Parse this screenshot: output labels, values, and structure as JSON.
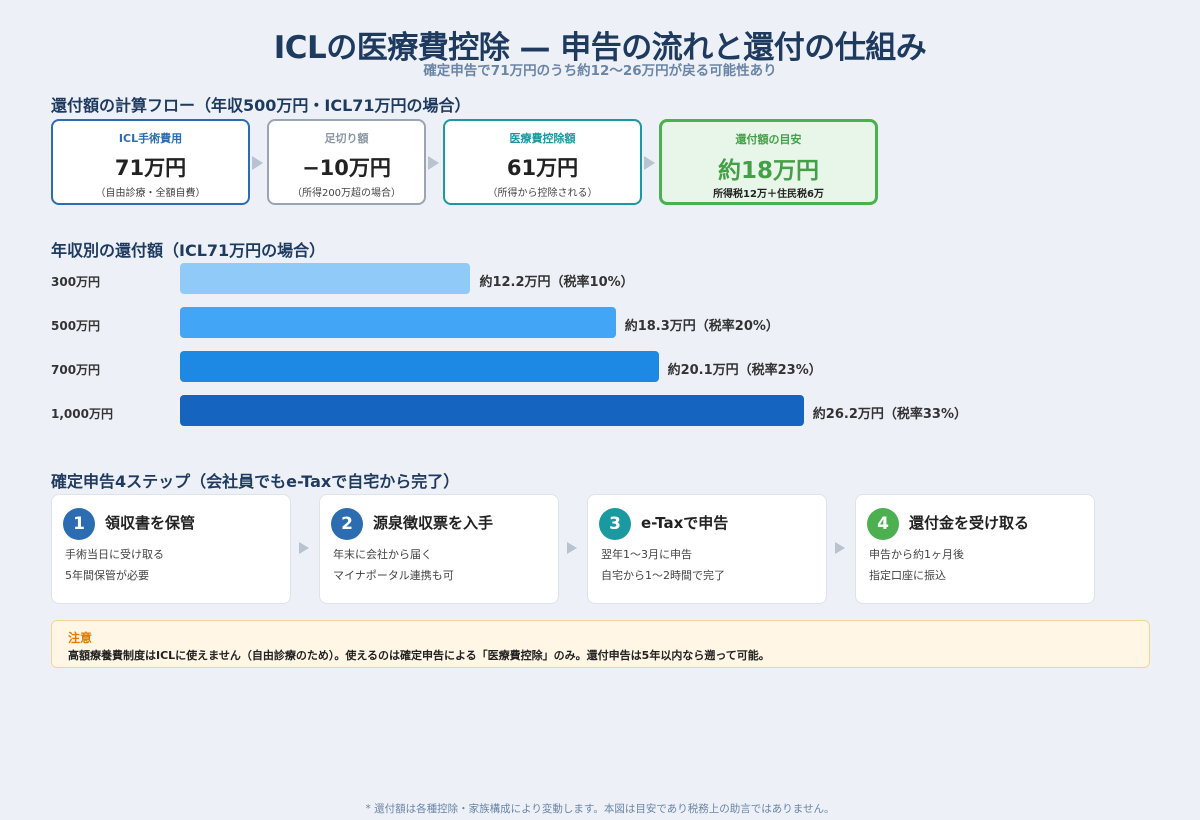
{
  "header": {
    "title": "ICLの医療費控除 — 申告の流れと還付の仕組み",
    "subtitle": "確定申告で71万円のうち約12〜26万円が戻る可能性あり"
  },
  "flow": {
    "heading": "還付額の計算フロー（年収500万円・ICL71万円の場合）",
    "boxes": [
      {
        "label": "ICL手術費用",
        "value": "71万円",
        "note": "（自由診療・全額自費）"
      },
      {
        "label": "足切り額",
        "value": "−10万円",
        "note": "（所得200万超の場合）"
      },
      {
        "label": "医療費控除額",
        "value": "61万円",
        "note": "（所得から控除される）"
      },
      {
        "label": "還付額の目安",
        "value": "約18万円",
        "note": "所得税12万＋住民税6万"
      }
    ],
    "colors": [
      "#2c6db1",
      "#9aa5b1",
      "#1a9aa0",
      "#4caf50"
    ]
  },
  "chart_data": {
    "type": "bar",
    "title": "年収別の還付額（ICL71万円の場合）",
    "categories": [
      "300万円",
      "500万円",
      "700万円",
      "1,000万円"
    ],
    "values": [
      12.2,
      18.3,
      20.1,
      26.2
    ],
    "value_labels": [
      "約12.2万円（税率10%）",
      "約18.3万円（税率20%）",
      "約20.1万円（税率23%）",
      "約26.2万円（税率33%）"
    ],
    "colors": [
      "#90caf9",
      "#42a5f5",
      "#1e88e5",
      "#1565c0"
    ],
    "xlim": [
      0,
      42
    ]
  },
  "steps": {
    "heading": "確定申告4ステップ（会社員でもe-Taxで自宅から完了）",
    "items": [
      {
        "num": "1",
        "title": "領収書を保管",
        "line1": "手術当日に受け取る",
        "line2": "5年間保管が必要",
        "color": "#2c6db1"
      },
      {
        "num": "2",
        "title": "源泉徴収票を入手",
        "line1": "年末に会社から届く",
        "line2": "マイナポータル連携も可",
        "color": "#2c6db1"
      },
      {
        "num": "3",
        "title": "e-Taxで申告",
        "line1": "翌年1〜3月に申告",
        "line2": "自宅から1〜2時間で完了",
        "color": "#1a9aa0"
      },
      {
        "num": "4",
        "title": "還付金を受け取る",
        "line1": "申告から約1ヶ月後",
        "line2": "指定口座に振込",
        "color": "#4caf50"
      }
    ]
  },
  "notice": {
    "title": "注意",
    "text": "高額療養費制度はICLに使えません（自由診療のため）。使えるのは確定申告による「医療費控除」のみ。還付申告は5年以内なら遡って可能。"
  },
  "footnote": "* 還付額は各種控除・家族構成により変動します。本図は目安であり税務上の助言ではありません。"
}
